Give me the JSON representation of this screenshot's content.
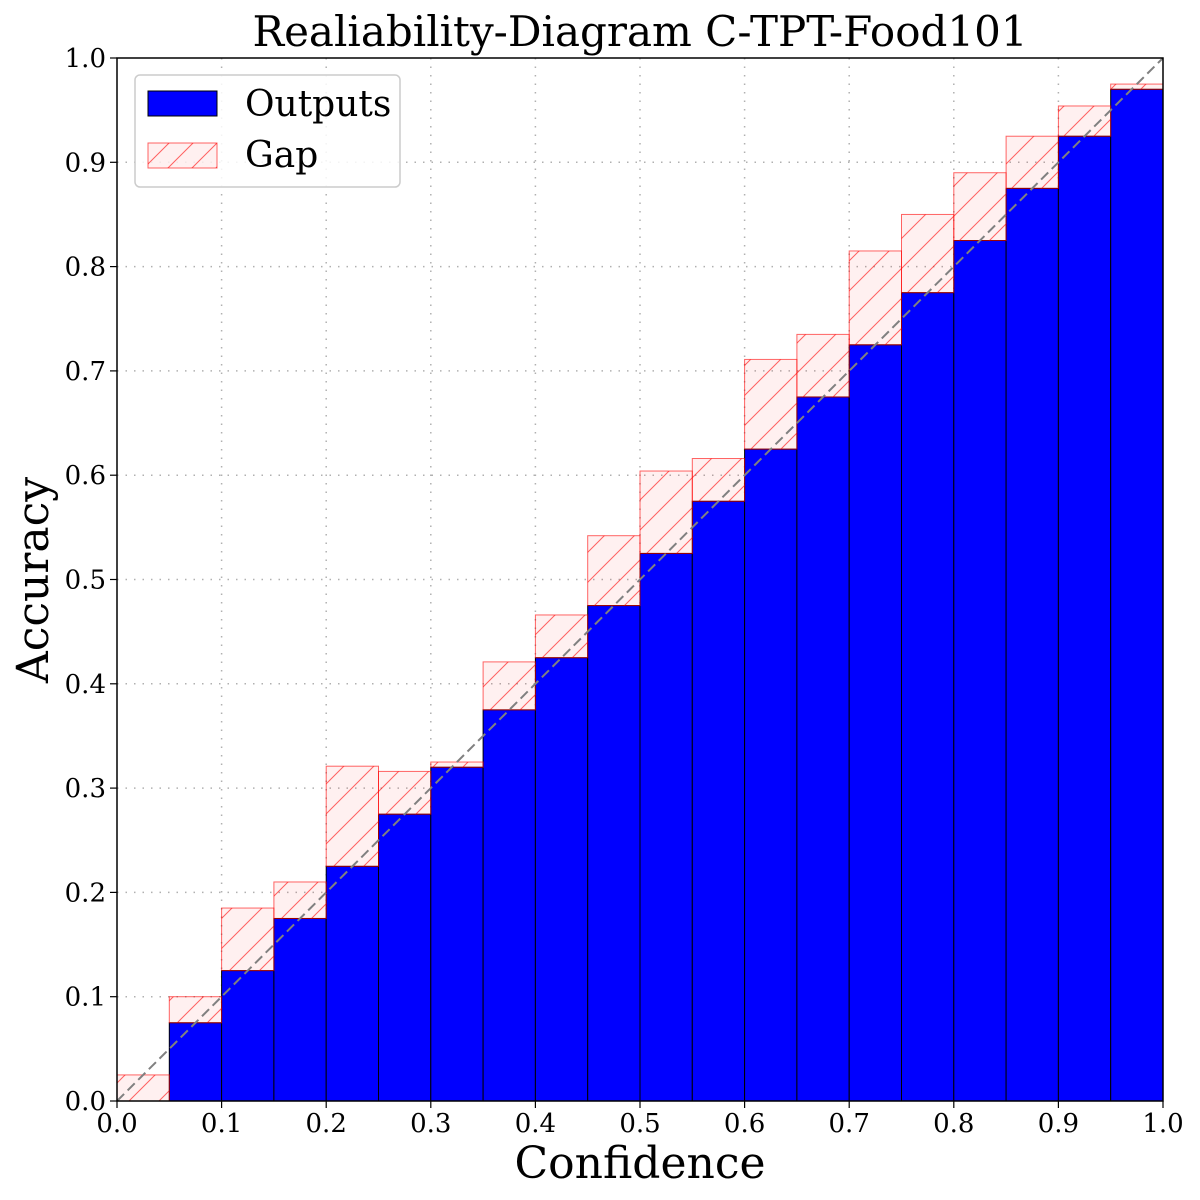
{
  "chart_data": {
    "type": "bar",
    "title": "Realiability-Diagram C-TPT-Food101",
    "xlabel": "Confidence",
    "ylabel": "Accuracy",
    "xlim": [
      0.0,
      1.0
    ],
    "ylim": [
      0.0,
      1.0
    ],
    "grid": true,
    "legend_position": "top-left",
    "bin_width": 0.05,
    "x_ticks": [
      "0.0",
      "0.1",
      "0.2",
      "0.3",
      "0.4",
      "0.5",
      "0.6",
      "0.7",
      "0.8",
      "0.9",
      "1.0"
    ],
    "y_ticks": [
      "0.0",
      "0.1",
      "0.2",
      "0.3",
      "0.4",
      "0.5",
      "0.6",
      "0.7",
      "0.8",
      "0.9",
      "1.0"
    ],
    "bins_left": [
      0.0,
      0.05,
      0.1,
      0.15,
      0.2,
      0.25,
      0.3,
      0.35,
      0.4,
      0.45,
      0.5,
      0.55,
      0.6,
      0.65,
      0.7,
      0.75,
      0.8,
      0.85,
      0.9,
      0.95
    ],
    "series": [
      {
        "name": "Outputs",
        "color": "#0000ff",
        "values": [
          0.0,
          0.075,
          0.125,
          0.175,
          0.225,
          0.275,
          0.32,
          0.375,
          0.425,
          0.475,
          0.525,
          0.575,
          0.625,
          0.675,
          0.725,
          0.775,
          0.825,
          0.875,
          0.925,
          0.97
        ]
      },
      {
        "name": "Gap",
        "color": "#ff0000",
        "bin_confidence": [
          0.025,
          0.075,
          0.125,
          0.175,
          0.225,
          0.275,
          0.325,
          0.375,
          0.425,
          0.475,
          0.525,
          0.575,
          0.625,
          0.675,
          0.725,
          0.775,
          0.825,
          0.875,
          0.925,
          0.975
        ],
        "top_values": [
          0.025,
          0.1,
          0.185,
          0.21,
          0.321,
          0.316,
          0.325,
          0.421,
          0.466,
          0.542,
          0.604,
          0.616,
          0.711,
          0.735,
          0.815,
          0.85,
          0.89,
          0.925,
          0.954,
          0.975
        ]
      }
    ],
    "diagonal": {
      "from": [
        0.0,
        0.0
      ],
      "to": [
        1.0,
        1.0
      ],
      "style": "dashed",
      "color": "#808080"
    },
    "legend": [
      "Outputs",
      "Gap"
    ]
  }
}
